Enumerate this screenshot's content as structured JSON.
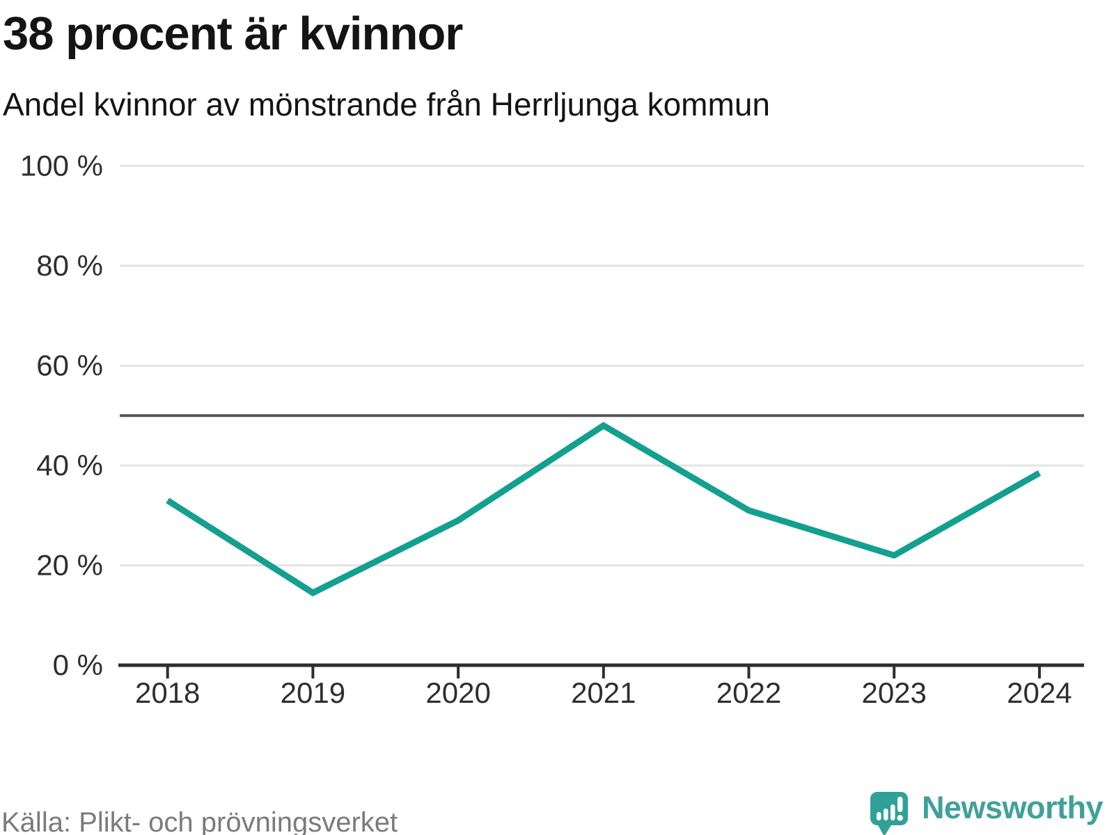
{
  "header": {
    "title": "38 procent är kvinnor",
    "subtitle": "Andel kvinnor av mönstrande från Herrljunga kommun"
  },
  "chart_data": {
    "type": "line",
    "categories": [
      "2018",
      "2019",
      "2020",
      "2021",
      "2022",
      "2023",
      "2024"
    ],
    "series": [
      {
        "name": "Andel kvinnor av mönstrande",
        "values": [
          33,
          14.5,
          29,
          48,
          31,
          22,
          38.5
        ]
      }
    ],
    "title": "38 procent är kvinnor",
    "subtitle": "Andel kvinnor av mönstrande från Herrljunga kommun",
    "xlabel": "",
    "ylabel": "",
    "ylim": [
      0,
      100
    ],
    "yticks": [
      0,
      20,
      40,
      60,
      80,
      100
    ],
    "ytick_labels": [
      "0 %",
      "20 %",
      "40 %",
      "60 %",
      "80 %",
      "100 %"
    ],
    "reference_line": {
      "value": 50
    },
    "grid": "horizontal",
    "legend": "none",
    "colors": {
      "line": "#14A08F",
      "grid": "#E4E4E4",
      "reference": "#55565A",
      "axis": "#2E2E31",
      "tick_label": "#2E2E31"
    }
  },
  "footer": {
    "source": "Källa: Plikt- och prövningsverket",
    "brand": "Newsworthy",
    "brand_color": "#41A09A",
    "icon_color": "#2FA198"
  }
}
